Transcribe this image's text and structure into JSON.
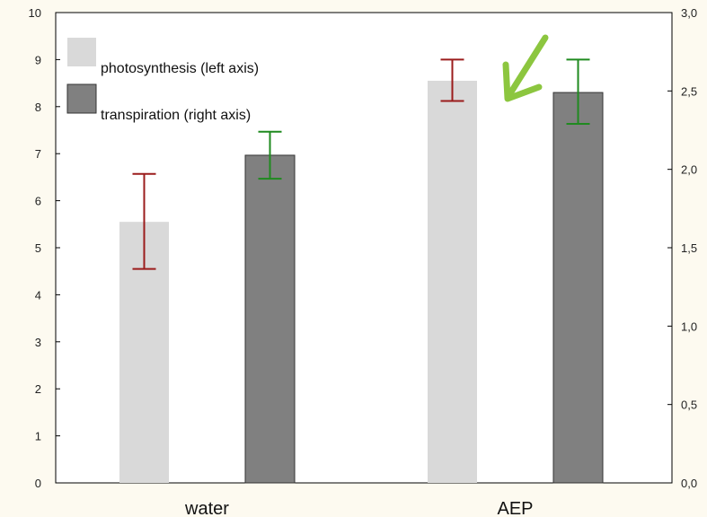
{
  "chart_data": {
    "type": "bar",
    "categories": [
      "water",
      "AEP"
    ],
    "series": [
      {
        "name": "photosynthesis (left axis)",
        "axis": "left",
        "color": "#d9d9d9",
        "values": [
          5.55,
          8.55
        ],
        "errors_low": [
          4.55,
          8.12
        ],
        "errors_high": [
          6.57,
          9.0
        ],
        "error_color": "#9b1c1c"
      },
      {
        "name": "transpiration (right axis)",
        "axis": "right",
        "color": "#808080",
        "values": [
          2.09,
          2.49
        ],
        "errors_low": [
          1.94,
          2.29
        ],
        "errors_high": [
          2.24,
          2.7
        ],
        "error_color": "#1f8a1f"
      }
    ],
    "left_axis": {
      "ylim": [
        0,
        10
      ],
      "ticks": [
        "0",
        "1",
        "2",
        "3",
        "4",
        "5",
        "6",
        "7",
        "8",
        "9",
        "10"
      ]
    },
    "right_axis": {
      "ylim": [
        0,
        3
      ],
      "ticks": [
        "0,0",
        "0,5",
        "1,0",
        "1,5",
        "2,0",
        "2,5",
        "3,0"
      ]
    },
    "legend_position": "top-left",
    "annotation": {
      "type": "arrow",
      "color": "#8cc63f",
      "target": "AEP"
    }
  }
}
